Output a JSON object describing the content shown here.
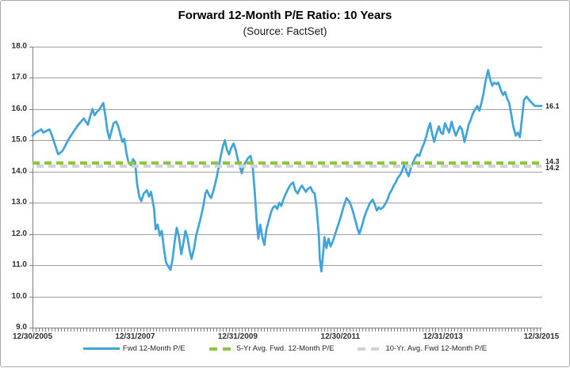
{
  "chart_data": {
    "type": "line",
    "title": "Forward 12-Month P/E Ratio: 10 Years",
    "subtitle": "(Source: FactSet)",
    "xlim": [
      2006.0,
      2015.92
    ],
    "ylim": [
      9.0,
      18.0
    ],
    "grid": "horizontal",
    "legend_position": "bottom",
    "colors": {
      "line_blue": "#3fa3dc",
      "avg_green": "#8cc63f",
      "avg_gray": "#d2d2d2",
      "gridline": "#a0a0a0",
      "axis": "#7f7f7f"
    },
    "y_ticks": [
      {
        "label": "18.0",
        "value": 18.0
      },
      {
        "label": "17.0",
        "value": 17.0
      },
      {
        "label": "16.0",
        "value": 16.0
      },
      {
        "label": "15.0",
        "value": 15.0
      },
      {
        "label": "14.0",
        "value": 14.0
      },
      {
        "label": "13.0",
        "value": 13.0
      },
      {
        "label": "12.0",
        "value": 12.0
      },
      {
        "label": "11.0",
        "value": 11.0
      },
      {
        "label": "10.0",
        "value": 10.0
      },
      {
        "label": "9.0",
        "value": 9.0
      }
    ],
    "x_ticks": [
      {
        "label": "12/30/2005",
        "year": 2006.0
      },
      {
        "label": "12/31/2007",
        "year": 2008.0
      },
      {
        "label": "12/31/2009",
        "year": 2010.0
      },
      {
        "label": "12/30/2011",
        "year": 2012.0
      },
      {
        "label": "12/31/2013",
        "year": 2014.0
      },
      {
        "label": "12/3/2015",
        "year": 2015.92
      }
    ],
    "series": [
      {
        "name": "Fwd 12-Month P/E",
        "style": "solid",
        "color": "#3fa3dc",
        "points": [
          [
            2006.0,
            15.15
          ],
          [
            2006.06,
            15.25
          ],
          [
            2006.12,
            15.3
          ],
          [
            2006.17,
            15.35
          ],
          [
            2006.21,
            15.25
          ],
          [
            2006.27,
            15.3
          ],
          [
            2006.33,
            15.35
          ],
          [
            2006.38,
            15.15
          ],
          [
            2006.44,
            14.85
          ],
          [
            2006.5,
            14.55
          ],
          [
            2006.54,
            14.6
          ],
          [
            2006.58,
            14.65
          ],
          [
            2006.63,
            14.8
          ],
          [
            2006.69,
            15.0
          ],
          [
            2006.75,
            15.15
          ],
          [
            2006.81,
            15.3
          ],
          [
            2006.87,
            15.45
          ],
          [
            2006.92,
            15.55
          ],
          [
            2007.0,
            15.7
          ],
          [
            2007.04,
            15.6
          ],
          [
            2007.08,
            15.5
          ],
          [
            2007.13,
            15.8
          ],
          [
            2007.17,
            16.0
          ],
          [
            2007.21,
            15.8
          ],
          [
            2007.25,
            15.9
          ],
          [
            2007.31,
            16.0
          ],
          [
            2007.38,
            16.2
          ],
          [
            2007.42,
            15.8
          ],
          [
            2007.46,
            15.3
          ],
          [
            2007.5,
            15.05
          ],
          [
            2007.54,
            15.3
          ],
          [
            2007.58,
            15.55
          ],
          [
            2007.63,
            15.6
          ],
          [
            2007.67,
            15.45
          ],
          [
            2007.71,
            15.2
          ],
          [
            2007.75,
            14.95
          ],
          [
            2007.79,
            15.05
          ],
          [
            2007.83,
            14.6
          ],
          [
            2007.87,
            14.3
          ],
          [
            2007.92,
            14.2
          ],
          [
            2007.96,
            14.4
          ],
          [
            2008.0,
            14.3
          ],
          [
            2008.04,
            13.6
          ],
          [
            2008.08,
            13.2
          ],
          [
            2008.12,
            13.05
          ],
          [
            2008.17,
            13.3
          ],
          [
            2008.23,
            13.4
          ],
          [
            2008.27,
            13.2
          ],
          [
            2008.31,
            13.35
          ],
          [
            2008.37,
            12.8
          ],
          [
            2008.4,
            12.15
          ],
          [
            2008.44,
            12.3
          ],
          [
            2008.48,
            11.95
          ],
          [
            2008.52,
            12.1
          ],
          [
            2008.56,
            11.55
          ],
          [
            2008.6,
            11.1
          ],
          [
            2008.65,
            10.95
          ],
          [
            2008.69,
            10.85
          ],
          [
            2008.73,
            11.2
          ],
          [
            2008.77,
            11.75
          ],
          [
            2008.81,
            12.2
          ],
          [
            2008.85,
            11.95
          ],
          [
            2008.9,
            11.35
          ],
          [
            2008.94,
            11.7
          ],
          [
            2008.98,
            12.1
          ],
          [
            2009.02,
            11.9
          ],
          [
            2009.06,
            11.5
          ],
          [
            2009.1,
            11.2
          ],
          [
            2009.15,
            11.55
          ],
          [
            2009.19,
            11.95
          ],
          [
            2009.23,
            12.2
          ],
          [
            2009.27,
            12.45
          ],
          [
            2009.33,
            12.9
          ],
          [
            2009.37,
            13.3
          ],
          [
            2009.4,
            13.4
          ],
          [
            2009.44,
            13.25
          ],
          [
            2009.48,
            13.15
          ],
          [
            2009.52,
            13.35
          ],
          [
            2009.56,
            13.6
          ],
          [
            2009.6,
            13.9
          ],
          [
            2009.63,
            14.15
          ],
          [
            2009.67,
            14.5
          ],
          [
            2009.71,
            14.8
          ],
          [
            2009.75,
            15.0
          ],
          [
            2009.79,
            14.7
          ],
          [
            2009.83,
            14.55
          ],
          [
            2009.87,
            14.75
          ],
          [
            2009.92,
            14.9
          ],
          [
            2009.96,
            14.7
          ],
          [
            2010.0,
            14.4
          ],
          [
            2010.04,
            14.15
          ],
          [
            2010.08,
            13.95
          ],
          [
            2010.12,
            14.2
          ],
          [
            2010.17,
            14.35
          ],
          [
            2010.21,
            14.45
          ],
          [
            2010.25,
            14.5
          ],
          [
            2010.29,
            14.2
          ],
          [
            2010.33,
            13.4
          ],
          [
            2010.37,
            12.4
          ],
          [
            2010.4,
            11.85
          ],
          [
            2010.44,
            12.3
          ],
          [
            2010.48,
            11.9
          ],
          [
            2010.52,
            11.65
          ],
          [
            2010.56,
            12.15
          ],
          [
            2010.6,
            12.4
          ],
          [
            2010.65,
            12.7
          ],
          [
            2010.69,
            12.85
          ],
          [
            2010.73,
            12.9
          ],
          [
            2010.77,
            12.8
          ],
          [
            2010.81,
            13.0
          ],
          [
            2010.85,
            12.9
          ],
          [
            2010.9,
            13.15
          ],
          [
            2010.94,
            13.3
          ],
          [
            2011.0,
            13.5
          ],
          [
            2011.04,
            13.6
          ],
          [
            2011.08,
            13.65
          ],
          [
            2011.12,
            13.4
          ],
          [
            2011.17,
            13.3
          ],
          [
            2011.21,
            13.45
          ],
          [
            2011.25,
            13.55
          ],
          [
            2011.29,
            13.45
          ],
          [
            2011.33,
            13.35
          ],
          [
            2011.37,
            13.45
          ],
          [
            2011.42,
            13.5
          ],
          [
            2011.46,
            13.35
          ],
          [
            2011.5,
            13.3
          ],
          [
            2011.54,
            12.8
          ],
          [
            2011.58,
            12.0
          ],
          [
            2011.6,
            11.2
          ],
          [
            2011.63,
            10.8
          ],
          [
            2011.67,
            11.45
          ],
          [
            2011.69,
            11.9
          ],
          [
            2011.73,
            11.55
          ],
          [
            2011.77,
            11.85
          ],
          [
            2011.81,
            11.6
          ],
          [
            2011.85,
            11.75
          ],
          [
            2011.9,
            12.0
          ],
          [
            2011.94,
            12.2
          ],
          [
            2012.0,
            12.5
          ],
          [
            2012.04,
            12.75
          ],
          [
            2012.08,
            12.95
          ],
          [
            2012.12,
            13.15
          ],
          [
            2012.17,
            13.05
          ],
          [
            2012.21,
            12.9
          ],
          [
            2012.25,
            12.7
          ],
          [
            2012.29,
            12.45
          ],
          [
            2012.33,
            12.2
          ],
          [
            2012.37,
            12.0
          ],
          [
            2012.42,
            12.25
          ],
          [
            2012.46,
            12.5
          ],
          [
            2012.5,
            12.7
          ],
          [
            2012.54,
            12.85
          ],
          [
            2012.58,
            13.0
          ],
          [
            2012.63,
            13.1
          ],
          [
            2012.67,
            12.95
          ],
          [
            2012.71,
            12.75
          ],
          [
            2012.75,
            12.85
          ],
          [
            2012.79,
            12.8
          ],
          [
            2012.83,
            12.85
          ],
          [
            2012.87,
            12.95
          ],
          [
            2012.92,
            13.1
          ],
          [
            2012.96,
            13.3
          ],
          [
            2013.0,
            13.4
          ],
          [
            2013.04,
            13.55
          ],
          [
            2013.08,
            13.65
          ],
          [
            2013.12,
            13.8
          ],
          [
            2013.17,
            13.9
          ],
          [
            2013.21,
            14.05
          ],
          [
            2013.25,
            14.25
          ],
          [
            2013.29,
            14.0
          ],
          [
            2013.33,
            13.85
          ],
          [
            2013.37,
            14.1
          ],
          [
            2013.42,
            14.3
          ],
          [
            2013.46,
            14.45
          ],
          [
            2013.5,
            14.55
          ],
          [
            2013.54,
            14.5
          ],
          [
            2013.58,
            14.7
          ],
          [
            2013.63,
            14.9
          ],
          [
            2013.67,
            15.1
          ],
          [
            2013.71,
            15.35
          ],
          [
            2013.75,
            15.55
          ],
          [
            2013.79,
            15.2
          ],
          [
            2013.83,
            14.95
          ],
          [
            2013.87,
            15.2
          ],
          [
            2013.92,
            15.45
          ],
          [
            2013.96,
            15.25
          ],
          [
            2014.0,
            15.2
          ],
          [
            2014.04,
            15.55
          ],
          [
            2014.08,
            15.4
          ],
          [
            2014.12,
            15.25
          ],
          [
            2014.17,
            15.6
          ],
          [
            2014.21,
            15.35
          ],
          [
            2014.25,
            15.15
          ],
          [
            2014.29,
            15.3
          ],
          [
            2014.33,
            15.45
          ],
          [
            2014.37,
            15.35
          ],
          [
            2014.42,
            14.95
          ],
          [
            2014.46,
            15.2
          ],
          [
            2014.5,
            15.5
          ],
          [
            2014.54,
            15.65
          ],
          [
            2014.58,
            15.85
          ],
          [
            2014.63,
            16.0
          ],
          [
            2014.67,
            16.1
          ],
          [
            2014.71,
            15.95
          ],
          [
            2014.75,
            16.2
          ],
          [
            2014.79,
            16.5
          ],
          [
            2014.83,
            16.9
          ],
          [
            2014.88,
            17.25
          ],
          [
            2014.92,
            16.95
          ],
          [
            2014.96,
            16.75
          ],
          [
            2015.0,
            16.85
          ],
          [
            2015.04,
            16.8
          ],
          [
            2015.08,
            16.85
          ],
          [
            2015.12,
            16.65
          ],
          [
            2015.17,
            16.45
          ],
          [
            2015.21,
            16.55
          ],
          [
            2015.25,
            16.35
          ],
          [
            2015.29,
            16.2
          ],
          [
            2015.33,
            15.85
          ],
          [
            2015.37,
            15.45
          ],
          [
            2015.42,
            15.15
          ],
          [
            2015.46,
            15.25
          ],
          [
            2015.5,
            15.1
          ],
          [
            2015.54,
            15.7
          ],
          [
            2015.58,
            16.3
          ],
          [
            2015.63,
            16.4
          ],
          [
            2015.7,
            16.25
          ],
          [
            2015.79,
            16.1
          ],
          [
            2015.92,
            16.1
          ]
        ]
      },
      {
        "name": "5-Yr Avg. Fwd. 12-Month P/E",
        "style": "dashed",
        "color": "#8cc63f",
        "value": 14.28
      },
      {
        "name": "10-Yr. Avg. Fwd 12-Month P/E",
        "style": "dashed",
        "color": "#d2d2d2",
        "value": 14.16
      }
    ],
    "end_labels": [
      {
        "text": "16.1",
        "value": 16.1
      },
      {
        "text": "14.3",
        "value": 14.32
      },
      {
        "text": "14.2",
        "value": 14.13
      }
    ]
  }
}
